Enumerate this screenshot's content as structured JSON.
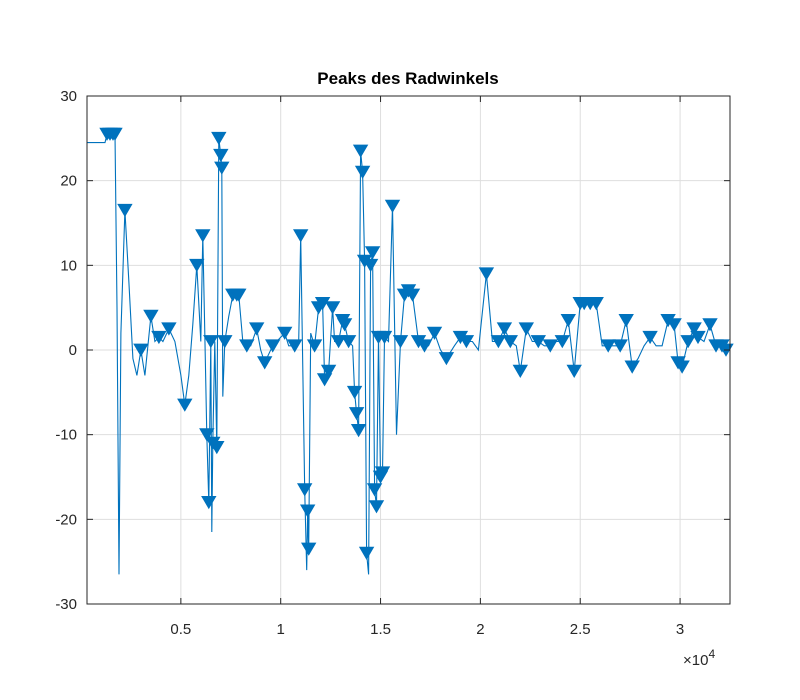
{
  "chart_data": {
    "type": "line",
    "title": "Peaks des Radwinkels",
    "xlabel": "",
    "ylabel": "",
    "xlim": [
      300,
      32500
    ],
    "ylim": [
      -30,
      30
    ],
    "grid": true,
    "x_ticks": [
      5000,
      10000,
      15000,
      20000,
      25000,
      30000
    ],
    "x_tick_labels": [
      "0.5",
      "1",
      "1.5",
      "2",
      "2.5",
      "3"
    ],
    "x_exponent_label": "×10",
    "x_exponent_power": "4",
    "y_ticks": [
      -30,
      -20,
      -10,
      0,
      10,
      20,
      30
    ],
    "y_tick_labels": [
      "-30",
      "-20",
      "-10",
      "0",
      "10",
      "20",
      "30"
    ],
    "line_color": "#0072BD",
    "marker_color": "#0072BD",
    "marker": "triangle-down",
    "signal": [
      [
        300,
        24.5
      ],
      [
        1200,
        24.5
      ],
      [
        1300,
        25.5
      ],
      [
        1450,
        25.5
      ],
      [
        1600,
        25.5
      ],
      [
        1700,
        25.5
      ],
      [
        1800,
        5
      ],
      [
        1900,
        -26.5
      ],
      [
        2000,
        2
      ],
      [
        2200,
        16.5
      ],
      [
        2400,
        8
      ],
      [
        2600,
        -1
      ],
      [
        2800,
        -3
      ],
      [
        3000,
        0
      ],
      [
        3200,
        -3
      ],
      [
        3500,
        4
      ],
      [
        3700,
        1
      ],
      [
        3900,
        1.5
      ],
      [
        4100,
        1
      ],
      [
        4400,
        2.5
      ],
      [
        4700,
        1
      ],
      [
        5000,
        -3
      ],
      [
        5200,
        -6.5
      ],
      [
        5400,
        -3
      ],
      [
        5600,
        3
      ],
      [
        5800,
        10
      ],
      [
        6000,
        1
      ],
      [
        6100,
        13.5
      ],
      [
        6200,
        2
      ],
      [
        6300,
        -10
      ],
      [
        6400,
        -18
      ],
      [
        6500,
        1
      ],
      [
        6550,
        -21.5
      ],
      [
        6600,
        -11
      ],
      [
        6700,
        1
      ],
      [
        6800,
        -11.5
      ],
      [
        6900,
        25
      ],
      [
        7000,
        23
      ],
      [
        7050,
        21.5
      ],
      [
        7100,
        -5.5
      ],
      [
        7200,
        1
      ],
      [
        7400,
        4
      ],
      [
        7600,
        6.5
      ],
      [
        7800,
        6.5
      ],
      [
        7900,
        6.5
      ],
      [
        8100,
        1
      ],
      [
        8300,
        0.5
      ],
      [
        8500,
        0.5
      ],
      [
        8800,
        2.5
      ],
      [
        9000,
        0
      ],
      [
        9200,
        -1.5
      ],
      [
        9400,
        -0.5
      ],
      [
        9600,
        0.5
      ],
      [
        9800,
        1
      ],
      [
        10000,
        1.5
      ],
      [
        10200,
        2
      ],
      [
        10400,
        0.5
      ],
      [
        10700,
        0.5
      ],
      [
        10900,
        1
      ],
      [
        11000,
        13.5
      ],
      [
        11200,
        -16.5
      ],
      [
        11300,
        -26
      ],
      [
        11350,
        -19
      ],
      [
        11400,
        -23.5
      ],
      [
        11500,
        2
      ],
      [
        11700,
        0.5
      ],
      [
        11900,
        5
      ],
      [
        12100,
        5.5
      ],
      [
        12200,
        -3.5
      ],
      [
        12400,
        -2.5
      ],
      [
        12600,
        5
      ],
      [
        12700,
        1
      ],
      [
        12900,
        1
      ],
      [
        13100,
        3.5
      ],
      [
        13200,
        3
      ],
      [
        13400,
        1
      ],
      [
        13600,
        0.5
      ],
      [
        13700,
        -5
      ],
      [
        13800,
        -7.5
      ],
      [
        13900,
        -9.5
      ],
      [
        14000,
        23.5
      ],
      [
        14100,
        21
      ],
      [
        14200,
        10.5
      ],
      [
        14300,
        -24
      ],
      [
        14400,
        -26.5
      ],
      [
        14500,
        10
      ],
      [
        14600,
        11.5
      ],
      [
        14700,
        -16.5
      ],
      [
        14800,
        -18.5
      ],
      [
        14900,
        1.5
      ],
      [
        15000,
        -15
      ],
      [
        15100,
        -14.5
      ],
      [
        15200,
        1.5
      ],
      [
        15400,
        1
      ],
      [
        15600,
        17
      ],
      [
        15800,
        -10
      ],
      [
        16000,
        1
      ],
      [
        16200,
        6.5
      ],
      [
        16400,
        7
      ],
      [
        16600,
        6.5
      ],
      [
        16900,
        1
      ],
      [
        17200,
        0.5
      ],
      [
        17400,
        0.5
      ],
      [
        17700,
        2
      ],
      [
        18000,
        0
      ],
      [
        18300,
        -1
      ],
      [
        18700,
        0.5
      ],
      [
        19000,
        1.5
      ],
      [
        19300,
        1
      ],
      [
        19600,
        1
      ],
      [
        19900,
        0
      ],
      [
        20300,
        9
      ],
      [
        20600,
        1
      ],
      [
        20900,
        1
      ],
      [
        21200,
        2.5
      ],
      [
        21500,
        1
      ],
      [
        21800,
        0.5
      ],
      [
        22000,
        -2.5
      ],
      [
        22300,
        2.5
      ],
      [
        22600,
        1
      ],
      [
        22900,
        1
      ],
      [
        23200,
        0.5
      ],
      [
        23500,
        0.5
      ],
      [
        23800,
        1
      ],
      [
        24100,
        1
      ],
      [
        24400,
        3.5
      ],
      [
        24700,
        -2.5
      ],
      [
        25000,
        5.5
      ],
      [
        25200,
        5.5
      ],
      [
        25500,
        5.5
      ],
      [
        25800,
        5.5
      ],
      [
        26100,
        0.5
      ],
      [
        26400,
        0.5
      ],
      [
        26700,
        0.5
      ],
      [
        27000,
        0.5
      ],
      [
        27300,
        3.5
      ],
      [
        27600,
        -2
      ],
      [
        27900,
        -1
      ],
      [
        28200,
        0.5
      ],
      [
        28500,
        1.5
      ],
      [
        28800,
        0.5
      ],
      [
        29100,
        0.5
      ],
      [
        29400,
        3.5
      ],
      [
        29700,
        3
      ],
      [
        29900,
        -1.5
      ],
      [
        30100,
        -2
      ],
      [
        30400,
        1
      ],
      [
        30700,
        2.5
      ],
      [
        30900,
        1.5
      ],
      [
        31200,
        1
      ],
      [
        31500,
        3
      ],
      [
        31800,
        0.5
      ],
      [
        32100,
        0.5
      ],
      [
        32300,
        0
      ],
      [
        32500,
        0
      ]
    ],
    "peaks": [
      [
        1300,
        25.5
      ],
      [
        1450,
        25.5
      ],
      [
        1600,
        25.5
      ],
      [
        1700,
        25.5
      ],
      [
        2200,
        16.5
      ],
      [
        3000,
        0
      ],
      [
        3500,
        4
      ],
      [
        3900,
        1.5
      ],
      [
        4400,
        2.5
      ],
      [
        5200,
        -6.5
      ],
      [
        5800,
        10
      ],
      [
        6100,
        13.5
      ],
      [
        6300,
        -10
      ],
      [
        6400,
        -18
      ],
      [
        6500,
        1
      ],
      [
        6600,
        -11
      ],
      [
        6800,
        -11.5
      ],
      [
        6900,
        25
      ],
      [
        7000,
        23
      ],
      [
        7050,
        21.5
      ],
      [
        7200,
        1
      ],
      [
        7600,
        6.5
      ],
      [
        7800,
        6.5
      ],
      [
        7900,
        6.5
      ],
      [
        8300,
        0.5
      ],
      [
        8800,
        2.5
      ],
      [
        9200,
        -1.5
      ],
      [
        9600,
        0.5
      ],
      [
        10200,
        2
      ],
      [
        10700,
        0.5
      ],
      [
        11000,
        13.5
      ],
      [
        11200,
        -16.5
      ],
      [
        11350,
        -19
      ],
      [
        11400,
        -23.5
      ],
      [
        11700,
        0.5
      ],
      [
        11900,
        5
      ],
      [
        12100,
        5.5
      ],
      [
        12200,
        -3.5
      ],
      [
        12400,
        -2.5
      ],
      [
        12600,
        5
      ],
      [
        12900,
        1
      ],
      [
        13100,
        3.5
      ],
      [
        13200,
        3
      ],
      [
        13400,
        1
      ],
      [
        13700,
        -5
      ],
      [
        13800,
        -7.5
      ],
      [
        13900,
        -9.5
      ],
      [
        14000,
        23.5
      ],
      [
        14100,
        21
      ],
      [
        14200,
        10.5
      ],
      [
        14300,
        -24
      ],
      [
        14500,
        10
      ],
      [
        14600,
        11.5
      ],
      [
        14700,
        -16.5
      ],
      [
        14800,
        -18.5
      ],
      [
        14900,
        1.5
      ],
      [
        15000,
        -15
      ],
      [
        15100,
        -14.5
      ],
      [
        15200,
        1.5
      ],
      [
        15600,
        17
      ],
      [
        16000,
        1
      ],
      [
        16200,
        6.5
      ],
      [
        16400,
        7
      ],
      [
        16600,
        6.5
      ],
      [
        16900,
        1
      ],
      [
        17200,
        0.5
      ],
      [
        17700,
        2
      ],
      [
        18300,
        -1
      ],
      [
        19000,
        1.5
      ],
      [
        19300,
        1
      ],
      [
        20300,
        9
      ],
      [
        20900,
        1
      ],
      [
        21200,
        2.5
      ],
      [
        21500,
        1
      ],
      [
        22000,
        -2.5
      ],
      [
        22300,
        2.5
      ],
      [
        22900,
        1
      ],
      [
        23500,
        0.5
      ],
      [
        24100,
        1
      ],
      [
        24400,
        3.5
      ],
      [
        24700,
        -2.5
      ],
      [
        25000,
        5.5
      ],
      [
        25200,
        5.5
      ],
      [
        25500,
        5.5
      ],
      [
        25800,
        5.5
      ],
      [
        26400,
        0.5
      ],
      [
        27000,
        0.5
      ],
      [
        27300,
        3.5
      ],
      [
        27600,
        -2
      ],
      [
        28500,
        1.5
      ],
      [
        29400,
        3.5
      ],
      [
        29700,
        3
      ],
      [
        29900,
        -1.5
      ],
      [
        30100,
        -2
      ],
      [
        30400,
        1
      ],
      [
        30700,
        2.5
      ],
      [
        30900,
        1.5
      ],
      [
        31500,
        3
      ],
      [
        31800,
        0.5
      ],
      [
        32100,
        0.5
      ],
      [
        32300,
        0
      ]
    ]
  }
}
